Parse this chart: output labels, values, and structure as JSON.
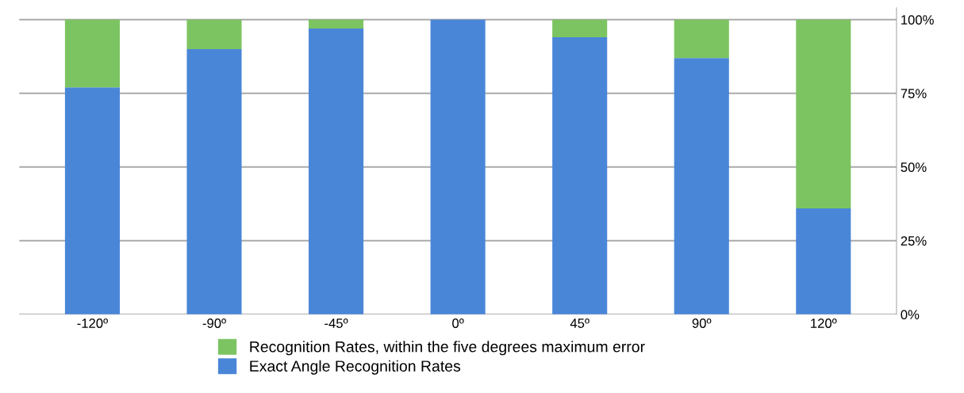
{
  "chart_data": {
    "type": "bar",
    "stacked": true,
    "categories": [
      "-120º",
      "-90º",
      "-45º",
      "0º",
      "45º",
      "90º",
      "120º"
    ],
    "series": [
      {
        "name": "Exact Angle Recognition Rates",
        "color": "#4a86d8",
        "values": [
          77,
          90,
          97,
          100,
          94,
          87,
          36
        ]
      },
      {
        "name": "Recognition Rates, within the five degrees maximum error",
        "color": "#7cc462",
        "values": [
          23,
          10,
          3,
          0,
          6,
          13,
          64
        ]
      }
    ],
    "ylim": [
      0,
      104
    ],
    "yticks": [
      {
        "value": 0,
        "label": "0%"
      },
      {
        "value": 25,
        "label": "25%"
      },
      {
        "value": 50,
        "label": "50%"
      },
      {
        "value": 75,
        "label": "75%"
      },
      {
        "value": 100,
        "label": "100%"
      }
    ],
    "grid": "y",
    "legend": "bottom"
  }
}
